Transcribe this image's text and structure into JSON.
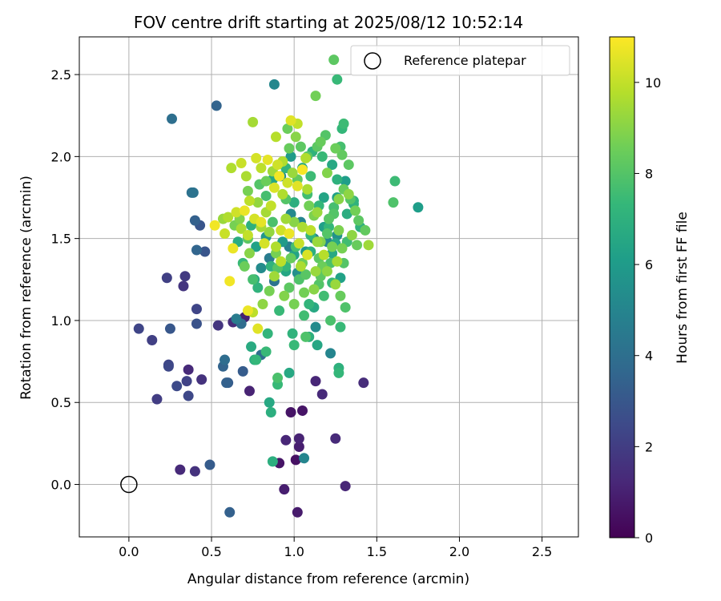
{
  "chart_data": {
    "type": "scatter",
    "title": "FOV centre drift starting at 2025/08/12 10:52:14",
    "xlabel": "Angular distance from reference (arcmin)",
    "ylabel": "Rotation from reference (arcmin)",
    "xlim": [
      -0.3,
      2.72
    ],
    "ylim": [
      -0.32,
      2.73
    ],
    "xticks": [
      0.0,
      0.5,
      1.0,
      1.5,
      2.0,
      2.5
    ],
    "xtick_labels": [
      "0.0",
      "0.5",
      "1.0",
      "1.5",
      "2.0",
      "2.5"
    ],
    "yticks": [
      0.0,
      0.5,
      1.0,
      1.5,
      2.0,
      2.5
    ],
    "ytick_labels": [
      "0.0",
      "0.5",
      "1.0",
      "1.5",
      "2.0",
      "2.5"
    ],
    "grid": true,
    "legend": {
      "position": "top-right",
      "entries": [
        {
          "label": "Reference platepar",
          "marker": "open-circle"
        }
      ]
    },
    "reference_point": {
      "x": 0.0,
      "y": 0.0
    },
    "colorbar": {
      "label": "Hours from first FF file",
      "colormap": "viridis",
      "range": [
        0,
        11
      ],
      "ticks": [
        0,
        2,
        4,
        6,
        8,
        10
      ],
      "tick_labels": [
        "0",
        "2",
        "4",
        "6",
        "8",
        "10"
      ],
      "stops": [
        "#440154",
        "#482878",
        "#3e4989",
        "#31688e",
        "#26828e",
        "#1f9e89",
        "#35b779",
        "#6ece58",
        "#b5de2b",
        "#fde725"
      ]
    },
    "points": [
      [
        0.06,
        0.95,
        2.3
      ],
      [
        0.14,
        0.88,
        2.1
      ],
      [
        0.17,
        0.52,
        2.0
      ],
      [
        0.24,
        0.72,
        2.4
      ],
      [
        0.24,
        0.73,
        2.3
      ],
      [
        0.25,
        0.95,
        3.0
      ],
      [
        0.29,
        0.6,
        2.5
      ],
      [
        0.31,
        0.09,
        1.3
      ],
      [
        0.33,
        1.21,
        1.7
      ],
      [
        0.34,
        1.27,
        1.9
      ],
      [
        0.35,
        0.63,
        2.2
      ],
      [
        0.36,
        0.54,
        2.4
      ],
      [
        0.36,
        0.7,
        1.3
      ],
      [
        0.4,
        0.08,
        1.6
      ],
      [
        0.41,
        0.98,
        2.8
      ],
      [
        0.41,
        1.07,
        2.3
      ],
      [
        0.44,
        0.64,
        1.6
      ],
      [
        0.49,
        0.12,
        3.2
      ],
      [
        0.23,
        1.26,
        2.1
      ],
      [
        0.26,
        2.23,
        4.0
      ],
      [
        0.38,
        1.78,
        4.1
      ],
      [
        0.39,
        1.78,
        4.2
      ],
      [
        0.4,
        1.61,
        3.4
      ],
      [
        0.41,
        1.43,
        3.6
      ],
      [
        0.43,
        1.58,
        2.9
      ],
      [
        0.46,
        1.42,
        2.9
      ],
      [
        0.53,
        2.31,
        3.5
      ],
      [
        0.54,
        0.97,
        1.7
      ],
      [
        0.57,
        0.72,
        3.5
      ],
      [
        0.58,
        0.76,
        3.9
      ],
      [
        0.59,
        0.62,
        3.4
      ],
      [
        0.6,
        0.62,
        3.2
      ],
      [
        0.61,
        -0.17,
        3.4
      ],
      [
        0.63,
        0.99,
        1.4
      ],
      [
        0.65,
        1.01,
        4.6
      ],
      [
        0.68,
        0.98,
        3.9
      ],
      [
        0.69,
        0.69,
        3.2
      ],
      [
        0.7,
        1.02,
        1.0
      ],
      [
        0.73,
        0.57,
        1.1
      ],
      [
        0.74,
        0.84,
        6.7
      ],
      [
        0.76,
        0.76,
        6.8
      ],
      [
        0.77,
        0.76,
        7.3
      ],
      [
        0.8,
        0.79,
        4.0
      ],
      [
        0.83,
        0.81,
        7.4
      ],
      [
        0.84,
        0.92,
        7.2
      ],
      [
        0.85,
        0.5,
        6.6
      ],
      [
        0.86,
        0.44,
        6.9
      ],
      [
        0.87,
        0.14,
        6.9
      ],
      [
        0.9,
        0.61,
        7.4
      ],
      [
        0.9,
        0.65,
        7.8
      ],
      [
        0.91,
        0.13,
        0.6
      ],
      [
        0.94,
        -0.03,
        0.9
      ],
      [
        0.95,
        0.27,
        1.2
      ],
      [
        0.97,
        0.68,
        6.6
      ],
      [
        0.98,
        0.44,
        0.6
      ],
      [
        0.99,
        0.92,
        7.1
      ],
      [
        1.0,
        0.85,
        7.4
      ],
      [
        1.01,
        0.15,
        0.5
      ],
      [
        1.02,
        -0.17,
        0.8
      ],
      [
        1.03,
        0.23,
        0.9
      ],
      [
        1.03,
        0.28,
        1.1
      ],
      [
        1.05,
        0.45,
        0.6
      ],
      [
        1.06,
        0.16,
        5.0
      ],
      [
        1.07,
        0.9,
        7.9
      ],
      [
        1.09,
        0.9,
        6.9
      ],
      [
        1.13,
        0.96,
        5.3
      ],
      [
        1.13,
        0.63,
        1.2
      ],
      [
        1.14,
        0.85,
        6.5
      ],
      [
        1.17,
        0.55,
        1.3
      ],
      [
        1.22,
        0.8,
        5.0
      ],
      [
        1.25,
        0.28,
        1.3
      ],
      [
        1.27,
        0.71,
        7.0
      ],
      [
        1.27,
        0.68,
        7.3
      ],
      [
        1.28,
        0.96,
        7.4
      ],
      [
        1.31,
        -0.01,
        1.2
      ],
      [
        1.42,
        0.62,
        1.4
      ],
      [
        0.88,
        2.44,
        5.1
      ],
      [
        0.89,
        2.12,
        9.8
      ],
      [
        1.13,
        2.37,
        8.6
      ],
      [
        1.26,
        2.47,
        7.4
      ],
      [
        1.24,
        2.59,
        8.2
      ],
      [
        1.29,
        2.17,
        7.3
      ],
      [
        1.3,
        2.2,
        7.5
      ],
      [
        1.61,
        1.85,
        7.5
      ],
      [
        1.6,
        1.72,
        7.9
      ],
      [
        1.75,
        1.69,
        6.1
      ],
      [
        1.33,
        1.95,
        8.2
      ],
      [
        0.76,
        1.25,
        6.7
      ],
      [
        0.78,
        1.2,
        7.1
      ],
      [
        0.8,
        1.32,
        5.3
      ],
      [
        0.85,
        1.38,
        4.6
      ],
      [
        0.88,
        1.24,
        4.2
      ],
      [
        0.9,
        1.32,
        8.0
      ],
      [
        0.93,
        1.48,
        6.0
      ],
      [
        0.95,
        1.33,
        7.3
      ],
      [
        0.97,
        1.45,
        4.8
      ],
      [
        1.0,
        1.4,
        6.4
      ],
      [
        1.02,
        1.29,
        5.5
      ],
      [
        1.05,
        1.35,
        8.5
      ],
      [
        1.07,
        1.42,
        5.9
      ],
      [
        1.1,
        1.52,
        7.2
      ],
      [
        1.12,
        1.5,
        4.7
      ],
      [
        1.15,
        1.38,
        8.2
      ],
      [
        1.18,
        1.57,
        6.2
      ],
      [
        1.2,
        1.48,
        5.1
      ],
      [
        1.22,
        1.35,
        7.8
      ],
      [
        1.25,
        1.47,
        6.6
      ],
      [
        1.27,
        1.55,
        8.8
      ],
      [
        1.28,
        1.26,
        6.3
      ],
      [
        1.3,
        1.35,
        8.0
      ],
      [
        1.32,
        1.48,
        7.6
      ],
      [
        1.35,
        1.52,
        9.1
      ],
      [
        1.38,
        1.46,
        8.4
      ],
      [
        1.4,
        1.57,
        7.0
      ],
      [
        1.43,
        1.55,
        8.3
      ],
      [
        0.98,
        1.65,
        5.2
      ],
      [
        1.0,
        1.72,
        6.9
      ],
      [
        1.04,
        1.6,
        5.0
      ],
      [
        1.08,
        1.77,
        7.6
      ],
      [
        1.12,
        1.64,
        8.8
      ],
      [
        1.15,
        1.7,
        7.3
      ],
      [
        1.18,
        1.75,
        6.4
      ],
      [
        1.21,
        1.62,
        8.1
      ],
      [
        1.24,
        1.69,
        7.7
      ],
      [
        1.27,
        1.74,
        9.0
      ],
      [
        1.3,
        1.8,
        8.4
      ],
      [
        1.32,
        1.65,
        6.8
      ],
      [
        1.34,
        1.74,
        8.0
      ],
      [
        1.37,
        1.67,
        8.6
      ],
      [
        0.92,
        1.88,
        5.4
      ],
      [
        0.95,
        1.93,
        7.2
      ],
      [
        0.98,
        2.0,
        6.0
      ],
      [
        1.02,
        1.86,
        8.3
      ],
      [
        1.05,
        1.93,
        6.7
      ],
      [
        1.08,
        2.0,
        8.1
      ],
      [
        1.1,
        1.88,
        7.5
      ],
      [
        1.14,
        2.06,
        8.2
      ],
      [
        1.17,
        2.0,
        7.4
      ],
      [
        1.2,
        1.9,
        8.9
      ],
      [
        1.23,
        1.95,
        6.6
      ],
      [
        1.26,
        1.86,
        7.0
      ],
      [
        1.29,
        2.01,
        8.3
      ],
      [
        1.31,
        1.85,
        6.1
      ],
      [
        0.7,
        1.33,
        8.5
      ],
      [
        0.73,
        1.41,
        9.0
      ],
      [
        0.75,
        1.25,
        7.7
      ],
      [
        0.8,
        1.57,
        9.5
      ],
      [
        0.82,
        1.47,
        10.3
      ],
      [
        0.85,
        1.54,
        9.2
      ],
      [
        0.87,
        1.6,
        7.8
      ],
      [
        0.89,
        1.45,
        9.7
      ],
      [
        0.92,
        1.55,
        10.2
      ],
      [
        0.95,
        1.62,
        9.4
      ],
      [
        0.97,
        1.53,
        10.7
      ],
      [
        1.0,
        1.6,
        9.0
      ],
      [
        1.03,
        1.47,
        10.1
      ],
      [
        1.05,
        1.57,
        9.6
      ],
      [
        1.08,
        1.4,
        10.4
      ],
      [
        1.1,
        1.55,
        9.9
      ],
      [
        1.13,
        1.3,
        9.3
      ],
      [
        1.16,
        1.48,
        8.9
      ],
      [
        1.18,
        1.4,
        9.8
      ],
      [
        1.2,
        1.3,
        9.1
      ],
      [
        1.23,
        1.45,
        8.7
      ],
      [
        1.26,
        1.36,
        9.5
      ],
      [
        0.7,
        1.67,
        10.7
      ],
      [
        0.73,
        1.73,
        9.9
      ],
      [
        0.76,
        1.62,
        10.3
      ],
      [
        0.78,
        1.72,
        9.2
      ],
      [
        0.8,
        1.6,
        10.6
      ],
      [
        0.83,
        1.66,
        9.5
      ],
      [
        0.86,
        1.7,
        10.0
      ],
      [
        0.88,
        1.81,
        10.4
      ],
      [
        0.91,
        1.88,
        10.8
      ],
      [
        0.93,
        1.77,
        9.7
      ],
      [
        0.96,
        1.84,
        10.2
      ],
      [
        0.99,
        1.9,
        9.3
      ],
      [
        1.02,
        1.82,
        10.5
      ],
      [
        1.05,
        1.92,
        10.9
      ],
      [
        1.08,
        1.8,
        9.6
      ],
      [
        0.62,
        1.93,
        9.7
      ],
      [
        0.68,
        1.96,
        10.1
      ],
      [
        0.71,
        1.88,
        9.6
      ],
      [
        0.77,
        1.99,
        10.3
      ],
      [
        0.8,
        1.93,
        9.9
      ],
      [
        0.84,
        1.98,
        10.6
      ],
      [
        0.87,
        1.91,
        9.4
      ],
      [
        0.9,
        1.95,
        10.2
      ],
      [
        0.93,
        1.97,
        9.7
      ],
      [
        0.96,
        2.17,
        8.5
      ],
      [
        0.98,
        2.22,
        10.5
      ],
      [
        1.02,
        2.2,
        10.0
      ],
      [
        0.75,
        2.21,
        9.5
      ],
      [
        0.57,
        1.62,
        9.3
      ],
      [
        0.6,
        1.63,
        9.7
      ],
      [
        0.63,
        1.44,
        10.7
      ],
      [
        0.65,
        1.66,
        10.2
      ],
      [
        0.68,
        1.56,
        9.6
      ],
      [
        0.52,
        1.58,
        10.8
      ],
      [
        0.58,
        1.53,
        10.1
      ],
      [
        0.61,
        1.24,
        10.8
      ],
      [
        0.72,
        1.06,
        10.7
      ],
      [
        0.75,
        1.05,
        9.9
      ],
      [
        0.78,
        0.95,
        10.5
      ],
      [
        0.81,
        1.1,
        9.1
      ],
      [
        0.85,
        1.18,
        8.7
      ],
      [
        0.88,
        1.27,
        9.4
      ],
      [
        0.91,
        1.06,
        7.4
      ],
      [
        0.94,
        1.15,
        8.9
      ],
      [
        0.97,
        1.2,
        8.2
      ],
      [
        1.0,
        1.1,
        8.7
      ],
      [
        1.03,
        1.25,
        7.9
      ],
      [
        1.06,
        1.17,
        8.6
      ],
      [
        1.09,
        1.1,
        7.2
      ],
      [
        1.12,
        1.08,
        6.6
      ],
      [
        1.15,
        1.22,
        8.0
      ],
      [
        1.18,
        1.15,
        7.6
      ],
      [
        1.22,
        1.0,
        7.8
      ],
      [
        1.25,
        1.22,
        9.3
      ],
      [
        1.28,
        1.15,
        8.4
      ],
      [
        1.31,
        1.08,
        7.9
      ],
      [
        0.66,
        1.48,
        6.8
      ],
      [
        0.69,
        1.35,
        7.4
      ],
      [
        0.72,
        1.5,
        8.2
      ],
      [
        0.74,
        1.58,
        7.0
      ],
      [
        0.77,
        1.45,
        6.3
      ],
      [
        0.83,
        1.51,
        5.8
      ],
      [
        0.86,
        1.33,
        7.1
      ],
      [
        0.89,
        1.41,
        8.7
      ],
      [
        0.92,
        1.36,
        9.9
      ],
      [
        0.95,
        1.3,
        6.5
      ],
      [
        0.98,
        1.38,
        8.4
      ],
      [
        1.01,
        1.45,
        7.7
      ],
      [
        1.04,
        1.33,
        9.6
      ],
      [
        1.07,
        1.28,
        8.1
      ],
      [
        1.1,
        1.42,
        6.9
      ],
      [
        1.14,
        1.48,
        9.3
      ],
      [
        1.17,
        1.33,
        8.5
      ],
      [
        1.2,
        1.53,
        8.0
      ],
      [
        1.23,
        1.23,
        7.4
      ],
      [
        1.26,
        1.52,
        5.6
      ],
      [
        1.29,
        1.44,
        8.7
      ],
      [
        1.24,
        1.65,
        8.0
      ],
      [
        1.26,
        1.75,
        6.2
      ],
      [
        1.33,
        1.77,
        9.1
      ],
      [
        1.36,
        1.71,
        7.0
      ],
      [
        1.39,
        1.61,
        8.2
      ],
      [
        1.45,
        1.46,
        9.4
      ],
      [
        0.95,
        1.74,
        8.0
      ],
      [
        1.09,
        1.7,
        8.6
      ],
      [
        1.14,
        1.66,
        9.3
      ],
      [
        0.83,
        1.76,
        7.7
      ],
      [
        0.87,
        1.86,
        6.5
      ],
      [
        0.97,
        2.05,
        8.4
      ],
      [
        1.01,
        2.12,
        9.0
      ],
      [
        1.04,
        2.06,
        8.2
      ],
      [
        1.07,
        1.99,
        9.7
      ],
      [
        1.11,
        2.03,
        7.1
      ],
      [
        1.16,
        2.09,
        8.4
      ],
      [
        1.19,
        2.13,
        8.0
      ],
      [
        1.25,
        2.05,
        8.5
      ],
      [
        1.28,
        2.06,
        7.7
      ],
      [
        0.64,
        1.58,
        8.7
      ],
      [
        0.67,
        1.62,
        8.9
      ],
      [
        0.72,
        1.79,
        8.7
      ],
      [
        0.72,
        1.52,
        10.0
      ],
      [
        0.79,
        1.83,
        8.0
      ],
      [
        0.83,
        1.85,
        8.5
      ],
      [
        1.21,
        1.57,
        7.3
      ],
      [
        1.23,
        1.41,
        6.6
      ],
      [
        1.12,
        1.19,
        9.0
      ],
      [
        1.16,
        1.27,
        8.2
      ],
      [
        1.06,
        1.03,
        7.6
      ],
      [
        1.36,
        1.73,
        7.1
      ]
    ]
  }
}
